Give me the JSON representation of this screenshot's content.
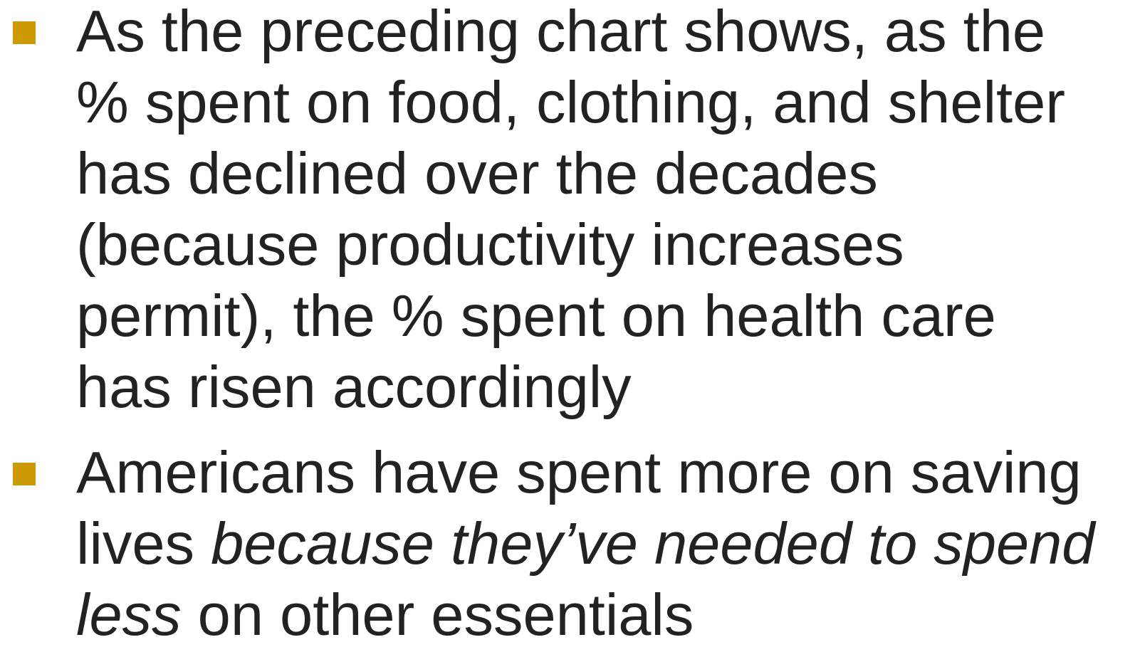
{
  "bullets": [
    {
      "lines": [
        [
          {
            "text": "As the preceding chart shows, as the"
          }
        ],
        [
          {
            "text": "% spent on food, clothing, and shelter"
          }
        ],
        [
          {
            "text": "has declined over the decades"
          }
        ],
        [
          {
            "text": "(because productivity increases"
          }
        ],
        [
          {
            "text": "permit), the % spent on health care"
          }
        ],
        [
          {
            "text": "has risen accordingly"
          }
        ]
      ]
    },
    {
      "lines": [
        [
          {
            "text": "Americans have spent more on saving"
          }
        ],
        [
          {
            "text": "lives "
          },
          {
            "text": "because they’ve needed to spend",
            "italic": true
          }
        ],
        [
          {
            "text": "less",
            "italic": true
          },
          {
            "text": " on other essentials"
          }
        ]
      ]
    }
  ]
}
